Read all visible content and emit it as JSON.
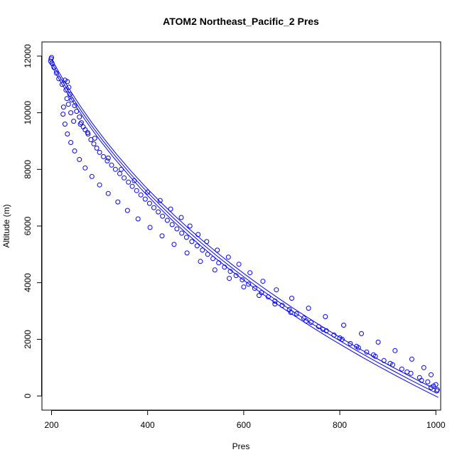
{
  "chart_data": {
    "type": "scatter",
    "title": "ATOM2 Northeast_Pacific_2 Pres",
    "xlabel": "Pres",
    "ylabel": "Altitude (m)",
    "xlim": [
      180,
      1010
    ],
    "ylim": [
      -500,
      12500
    ],
    "xticks": [
      200,
      400,
      600,
      800,
      1000
    ],
    "yticks": [
      0,
      2000,
      4000,
      6000,
      8000,
      10000,
      12000
    ],
    "grid": false,
    "color": "#0000ff",
    "marker": "open-circle",
    "series": [
      {
        "pres": [
          1005,
          980,
          950,
          920,
          880,
          850,
          820,
          780,
          750,
          720,
          690,
          660,
          630,
          600,
          570,
          540,
          510,
          480,
          450,
          420,
          390,
          360,
          330,
          300,
          275,
          255,
          240,
          228,
          218,
          210,
          203,
          198
        ]
      },
      {
        "pres": [
          1002,
          975,
          945,
          912,
          878,
          842,
          808,
          775,
          742,
          710,
          678,
          645,
          612,
          580,
          548,
          515,
          485,
          455,
          425,
          395,
          365,
          335,
          305,
          282,
          262,
          246,
          234,
          222,
          213,
          205,
          200
        ]
      },
      {
        "pres": [
          998,
          968,
          936,
          903,
          868,
          833,
          800,
          766,
          733,
          701,
          669,
          638,
          606,
          575,
          544,
          514,
          484,
          454,
          424,
          394,
          364,
          335,
          308,
          284,
          264,
          248,
          236,
          226,
          216,
          208,
          201
        ]
      }
    ],
    "points": [
      [
        200,
        11950
      ],
      [
        199,
        11900
      ],
      [
        198,
        11820
      ],
      [
        201,
        11750
      ],
      [
        205,
        11600
      ],
      [
        210,
        11400
      ],
      [
        215,
        11200
      ],
      [
        222,
        11000
      ],
      [
        230,
        10800
      ],
      [
        238,
        10650
      ],
      [
        242,
        10450
      ],
      [
        248,
        10250
      ],
      [
        252,
        10050
      ],
      [
        258,
        9850
      ],
      [
        262,
        9650
      ],
      [
        266,
        9500
      ],
      [
        270,
        9400
      ],
      [
        276,
        9250
      ],
      [
        282,
        9050
      ],
      [
        288,
        8900
      ],
      [
        294,
        8750
      ],
      [
        300,
        8600
      ],
      [
        308,
        8450
      ],
      [
        316,
        8300
      ],
      [
        325,
        8150
      ],
      [
        333,
        8000
      ],
      [
        342,
        7850
      ],
      [
        351,
        7700
      ],
      [
        360,
        7550
      ],
      [
        368,
        7400
      ],
      [
        377,
        7250
      ],
      [
        386,
        7100
      ],
      [
        395,
        6950
      ],
      [
        404,
        6800
      ],
      [
        413,
        6650
      ],
      [
        422,
        6500
      ],
      [
        431,
        6350
      ],
      [
        441,
        6200
      ],
      [
        451,
        6050
      ],
      [
        461,
        5900
      ],
      [
        471,
        5750
      ],
      [
        481,
        5600
      ],
      [
        492,
        5450
      ],
      [
        503,
        5300
      ],
      [
        514,
        5150
      ],
      [
        525,
        5000
      ],
      [
        536,
        4850
      ],
      [
        548,
        4700
      ],
      [
        560,
        4550
      ],
      [
        572,
        4400
      ],
      [
        584,
        4250
      ],
      [
        597,
        4100
      ],
      [
        610,
        3950
      ],
      [
        623,
        3800
      ],
      [
        637,
        3650
      ],
      [
        651,
        3500
      ],
      [
        665,
        3350
      ],
      [
        680,
        3200
      ],
      [
        695,
        3050
      ],
      [
        710,
        2900
      ],
      [
        725,
        2750
      ],
      [
        740,
        2600
      ],
      [
        756,
        2450
      ],
      [
        772,
        2300
      ],
      [
        788,
        2150
      ],
      [
        805,
        2000
      ],
      [
        822,
        1850
      ],
      [
        839,
        1700
      ],
      [
        856,
        1550
      ],
      [
        874,
        1400
      ],
      [
        892,
        1250
      ],
      [
        910,
        1100
      ],
      [
        929,
        950
      ],
      [
        948,
        800
      ],
      [
        966,
        650
      ],
      [
        983,
        500
      ],
      [
        995,
        350
      ],
      [
        1003,
        220
      ],
      [
        1002,
        180
      ],
      [
        990,
        300
      ],
      [
        970,
        550
      ],
      [
        940,
        850
      ],
      [
        905,
        1150
      ],
      [
        870,
        1450
      ],
      [
        835,
        1750
      ],
      [
        800,
        2050
      ],
      [
        765,
        2350
      ],
      [
        730,
        2650
      ],
      [
        698,
        2950
      ],
      [
        665,
        3250
      ],
      [
        632,
        3550
      ],
      [
        600,
        3850
      ],
      [
        570,
        4150
      ],
      [
        540,
        4450
      ],
      [
        510,
        4750
      ],
      [
        482,
        5050
      ],
      [
        455,
        5350
      ],
      [
        430,
        5650
      ],
      [
        405,
        5950
      ],
      [
        380,
        6250
      ],
      [
        358,
        6550
      ],
      [
        338,
        6850
      ],
      [
        318,
        7150
      ],
      [
        300,
        7450
      ],
      [
        284,
        7750
      ],
      [
        270,
        8050
      ],
      [
        258,
        8350
      ],
      [
        248,
        8650
      ],
      [
        240,
        8950
      ],
      [
        233,
        9250
      ],
      [
        228,
        9600
      ],
      [
        224,
        9950
      ],
      [
        225,
        10200
      ],
      [
        232,
        10500
      ],
      [
        236,
        10900
      ],
      [
        233,
        11100
      ],
      [
        228,
        11150
      ],
      [
        235,
        10300
      ],
      [
        240,
        10000
      ],
      [
        246,
        9700
      ],
      [
        260,
        9600
      ],
      [
        275,
        9300
      ],
      [
        290,
        9100
      ],
      [
        318,
        8400
      ],
      [
        345,
        8000
      ],
      [
        372,
        7600
      ],
      [
        400,
        7200
      ],
      [
        426,
        6900
      ],
      [
        448,
        6600
      ],
      [
        470,
        6300
      ],
      [
        488,
        6000
      ],
      [
        505,
        5700
      ],
      [
        523,
        5450
      ],
      [
        545,
        5150
      ],
      [
        568,
        4900
      ],
      [
        590,
        4650
      ],
      [
        613,
        4350
      ],
      [
        640,
        4050
      ],
      [
        668,
        3750
      ],
      [
        700,
        3450
      ],
      [
        735,
        3100
      ],
      [
        770,
        2800
      ],
      [
        808,
        2500
      ],
      [
        845,
        2200
      ],
      [
        880,
        1900
      ],
      [
        915,
        1600
      ],
      [
        950,
        1300
      ],
      [
        975,
        1000
      ],
      [
        990,
        750
      ],
      [
        1000,
        400
      ]
    ]
  }
}
